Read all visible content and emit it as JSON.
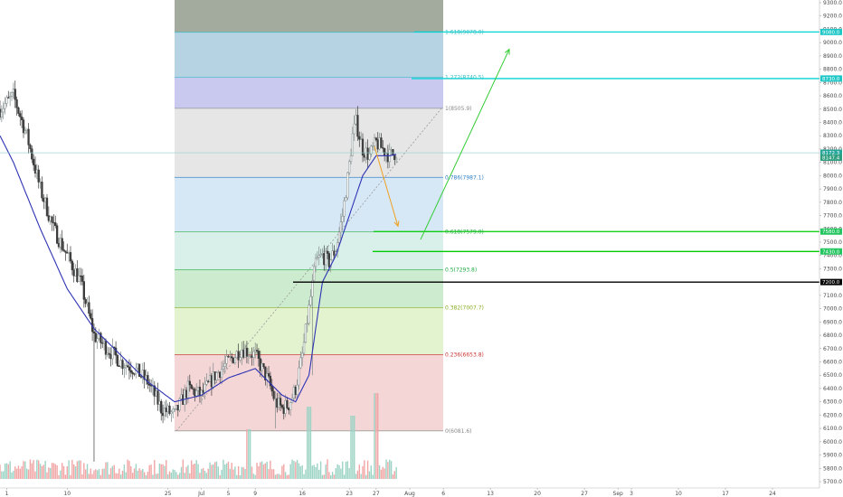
{
  "chart_data": {
    "type": "candlestick",
    "title": "",
    "xlabel": "",
    "ylabel": "",
    "ylim": [
      5700,
      9300
    ],
    "y_ticks": [
      5700,
      5800,
      5900,
      6000,
      6100,
      6200,
      6300,
      6400,
      6500,
      6600,
      6700,
      6800,
      6900,
      7000,
      7100,
      7200,
      7300,
      7400,
      7500,
      7600,
      7700,
      7800,
      7900,
      8000,
      8100,
      8200,
      8300,
      8400,
      8500,
      8600,
      8700,
      8800,
      8900,
      9000,
      9100,
      9200,
      9300
    ],
    "x_ticks": [
      {
        "label": "1",
        "t": -29
      },
      {
        "label": "10",
        "t": -20
      },
      {
        "label": "25",
        "t": -5
      },
      {
        "label": "Jul",
        "t": 0
      },
      {
        "label": "5",
        "t": 4
      },
      {
        "label": "9",
        "t": 8
      },
      {
        "label": "16",
        "t": 15
      },
      {
        "label": "23",
        "t": 22
      },
      {
        "label": "27",
        "t": 26
      },
      {
        "label": "Aug",
        "t": 31
      },
      {
        "label": "6",
        "t": 36
      },
      {
        "label": "13",
        "t": 43
      },
      {
        "label": "20",
        "t": 50
      },
      {
        "label": "27",
        "t": 57
      },
      {
        "label": "Sep",
        "t": 62
      },
      {
        "label": "3",
        "t": 64
      },
      {
        "label": "10",
        "t": 71
      },
      {
        "label": "17",
        "t": 78
      },
      {
        "label": "24",
        "t": 85
      }
    ],
    "x_range": [
      -30,
      92
    ],
    "price_keypoints": [
      [
        -30,
        8500
      ],
      [
        -28,
        8600
      ],
      [
        -26,
        8300
      ],
      [
        -24,
        7900
      ],
      [
        -22,
        7600
      ],
      [
        -20,
        7400
      ],
      [
        -18,
        7200
      ],
      [
        -16,
        6800
      ],
      [
        -14,
        6700
      ],
      [
        -12,
        6600
      ],
      [
        -10,
        6550
      ],
      [
        -8,
        6450
      ],
      [
        -6,
        6250
      ],
      [
        -4,
        6200
      ],
      [
        -2,
        6400
      ],
      [
        0,
        6350
      ],
      [
        2,
        6500
      ],
      [
        4,
        6600
      ],
      [
        6,
        6700
      ],
      [
        8,
        6650
      ],
      [
        10,
        6450
      ],
      [
        11,
        6300
      ],
      [
        12,
        6250
      ],
      [
        13,
        6280
      ],
      [
        14,
        6400
      ],
      [
        15,
        6650
      ],
      [
        16,
        7000
      ],
      [
        17,
        7350
      ],
      [
        18,
        7400
      ],
      [
        19,
        7350
      ],
      [
        20,
        7450
      ],
      [
        21,
        7700
      ],
      [
        21.8,
        8000
      ],
      [
        22.5,
        8300
      ],
      [
        23,
        8400
      ],
      [
        24,
        8200
      ],
      [
        25,
        8150
      ],
      [
        26,
        8250
      ],
      [
        27,
        8200
      ],
      [
        28,
        8150
      ],
      [
        29,
        8175
      ]
    ],
    "ma_keypoints": [
      [
        -30,
        8300
      ],
      [
        -28,
        8100
      ],
      [
        -24,
        7600
      ],
      [
        -20,
        7150
      ],
      [
        -16,
        6850
      ],
      [
        -12,
        6650
      ],
      [
        -8,
        6450
      ],
      [
        -4,
        6300
      ],
      [
        0,
        6350
      ],
      [
        4,
        6480
      ],
      [
        8,
        6550
      ],
      [
        10,
        6450
      ],
      [
        12,
        6350
      ],
      [
        14,
        6300
      ],
      [
        16,
        6500
      ],
      [
        17,
        6850
      ],
      [
        18,
        7200
      ],
      [
        19,
        7300
      ],
      [
        20,
        7400
      ],
      [
        22,
        7700
      ],
      [
        24,
        8000
      ],
      [
        26,
        8150
      ],
      [
        28,
        8150
      ],
      [
        29,
        8160
      ]
    ],
    "fib_levels": [
      {
        "level": 1.618,
        "price": 9078.0,
        "label": "1.618(9078.0)",
        "color": "#2fbcc4"
      },
      {
        "level": 1.272,
        "price": 8740.5,
        "label": "1.272(8740.5)",
        "color": "#2fbcc4"
      },
      {
        "level": 1,
        "price": 8505.9,
        "label": "1(8505.9)",
        "color": "#888888"
      },
      {
        "level": 0.786,
        "price": 7987.1,
        "label": "0.786(7987.1)",
        "color": "#2f7fc4"
      },
      {
        "level": 0.618,
        "price": 7579.0,
        "label": "0.618(7579.0)",
        "color": "#22aa44"
      },
      {
        "level": 0.5,
        "price": 7293.8,
        "label": "0.5(7293.8)",
        "color": "#22aa44"
      },
      {
        "level": 0.382,
        "price": 7007.7,
        "label": "0.382(7007.7)",
        "color": "#88aa22"
      },
      {
        "level": 0.236,
        "price": 6653.8,
        "label": "0.236(6653.8)",
        "color": "#cc3333"
      },
      {
        "level": 0,
        "price": 6081.6,
        "label": "0(6081.6)",
        "color": "#888888"
      }
    ],
    "horizontal_lines": [
      {
        "price": 9080,
        "label": "9080.0",
        "color": "#00d4d4"
      },
      {
        "price": 8730,
        "label": "8730.0",
        "color": "#00d4d4"
      },
      {
        "price": 7580,
        "label": "7580.0",
        "color": "#00cc00"
      },
      {
        "price": 7430,
        "label": "7430.0",
        "color": "#00cc00"
      },
      {
        "price": 7200,
        "label": "7200.0",
        "color": "#000000"
      }
    ],
    "current_price_badges": [
      {
        "price": 8172.3,
        "label": "8172.3",
        "color": "#26a69a"
      },
      {
        "price": 8147.4,
        "label": "8147.4",
        "color": "#2e9e7f"
      }
    ],
    "colors": {
      "up": "#7e8a8a",
      "down": "#3b3b3b",
      "ma": "#2d33b4",
      "volume_up": "#9bd3c4",
      "volume_down": "#f1a5a5",
      "arrow_up": "#33cc33",
      "arrow_down": "#f0a020"
    }
  }
}
